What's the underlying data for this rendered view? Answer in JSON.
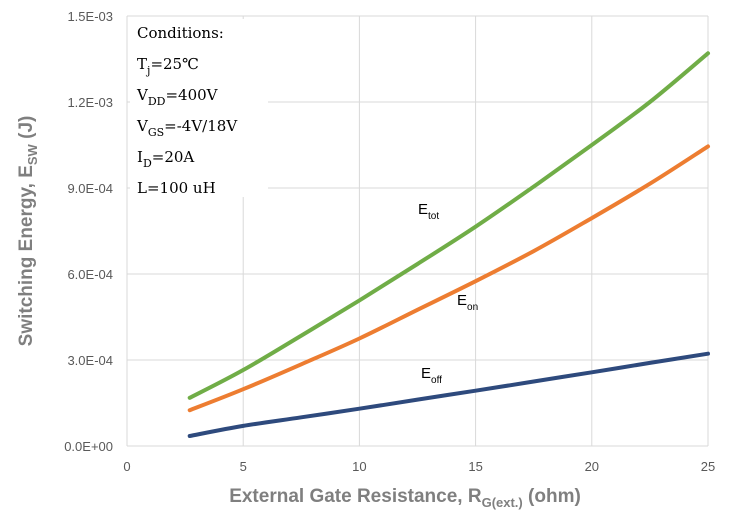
{
  "chart_data": {
    "type": "line",
    "x_axis": {
      "title_main": "External Gate Resistance, R",
      "title_sub": "G(ext.)",
      "title_tail": " (ohm)",
      "range": [
        0,
        25
      ],
      "ticks": [
        0,
        5,
        10,
        15,
        20,
        25
      ],
      "tick_labels": [
        "0",
        "5",
        "10",
        "15",
        "20",
        "25"
      ]
    },
    "y_axis": {
      "title_main": "Switching Energy, E",
      "title_sub": "SW",
      "title_tail": " (J)",
      "range": [
        0,
        0.0015
      ],
      "ticks": [
        0,
        0.0003,
        0.0006,
        0.0009,
        0.0012,
        0.0015
      ],
      "tick_labels": [
        "0.0E+00",
        "3.0E-04",
        "6.0E-04",
        "9.0E-04",
        "1.2E-03",
        "1.5E-03"
      ]
    },
    "grid": true,
    "conditions": [
      {
        "main": "Conditions:",
        "sub": "",
        "tail": ""
      },
      {
        "main": "T",
        "sub": "j",
        "tail": "=25℃"
      },
      {
        "main": "V",
        "sub": "DD",
        "tail": "=400V"
      },
      {
        "main": "V",
        "sub": "GS",
        "tail": "=-4V/18V"
      },
      {
        "main": "I",
        "sub": "D",
        "tail": "=20A"
      },
      {
        "main": "L=100 uH",
        "sub": "",
        "tail": ""
      }
    ],
    "series": [
      {
        "name": "tot",
        "label_main": "E",
        "label_sub": "tot",
        "color": "#70ad47",
        "x": [
          2.7,
          5,
          7.5,
          10,
          12.5,
          15,
          17.5,
          20,
          22.5,
          25
        ],
        "y": [
          0.000168,
          0.000265,
          0.000385,
          0.000508,
          0.000635,
          0.000765,
          0.000905,
          0.00105,
          0.0012,
          0.00137
        ]
      },
      {
        "name": "on",
        "label_main": "E",
        "label_sub": "on",
        "color": "#ed7d31",
        "x": [
          2.7,
          5,
          7.5,
          10,
          12.5,
          15,
          17.5,
          20,
          22.5,
          25
        ],
        "y": [
          0.000125,
          0.000198,
          0.000285,
          0.000375,
          0.000475,
          0.000575,
          0.00068,
          0.000795,
          0.000915,
          0.001045
        ]
      },
      {
        "name": "off",
        "label_main": "E",
        "label_sub": "off",
        "color": "#2e4a7d",
        "x": [
          2.7,
          5,
          7.5,
          10,
          12.5,
          15,
          17.5,
          20,
          22.5,
          25
        ],
        "y": [
          3.5e-05,
          7e-05,
          0.0001,
          0.00013,
          0.000162,
          0.000193,
          0.000225,
          0.000257,
          0.00029,
          0.000322
        ]
      }
    ]
  }
}
